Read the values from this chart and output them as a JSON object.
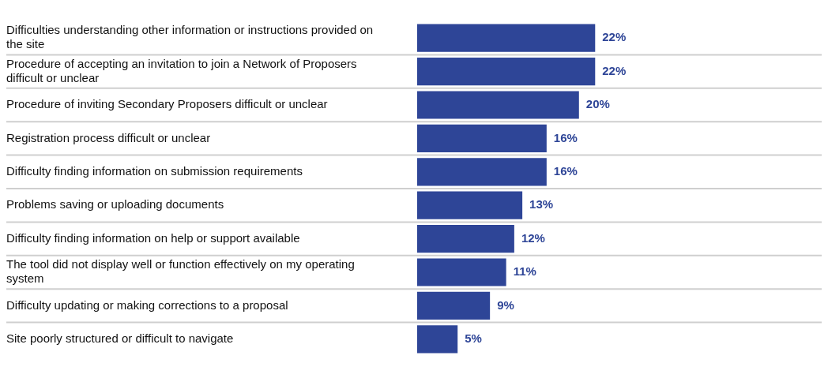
{
  "chart_data": {
    "type": "bar",
    "orientation": "horizontal",
    "categories": [
      "Difficulties understanding other information or instructions provided on the site",
      "Procedure of accepting an invitation to join a Network of Proposers difficult or unclear",
      "Procedure of inviting Secondary Proposers difficult or unclear",
      "Registration process difficult or unclear",
      "Difficulty finding information on submission requirements",
      "Problems saving or uploading documents",
      "Difficulty finding information on help or support available",
      "The tool did not display well or function effectively on my operating system",
      "Difficulty updating or making corrections to a proposal",
      "Site poorly structured or difficult to navigate"
    ],
    "values": [
      22,
      22,
      20,
      16,
      16,
      13,
      12,
      11,
      9,
      5
    ],
    "value_labels": [
      "22%",
      "22%",
      "20%",
      "16%",
      "16%",
      "13%",
      "12%",
      "11%",
      "9%",
      "5%"
    ],
    "color": "#2e4597",
    "xlim": [
      0,
      50
    ],
    "tick_labels": "y",
    "grid": "y",
    "legend": false
  }
}
